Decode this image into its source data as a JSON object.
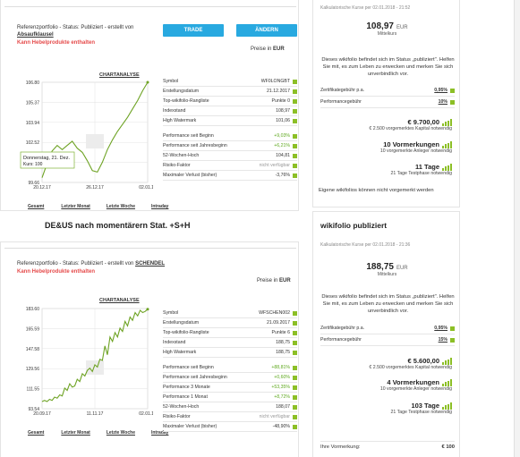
{
  "top": {
    "ref_prefix": "Referenzportfolio - Status: Publiziert - erstellt von",
    "ref_author": "Absaufklausel",
    "warning": "Kann Hebelprodukte enthalten",
    "buttons": {
      "trade": "TRADE",
      "change": "ÄNDERN"
    },
    "preise_label": "Preise in",
    "preise_currency": "EUR",
    "chart_title": "CHARTANALYSE",
    "chart_data": {
      "type": "line",
      "x_ticks": [
        "20.12.17",
        "26.12.17",
        "02.01.18"
      ],
      "y_ticks": [
        "106.80",
        "105.37",
        "103.94",
        "102.52",
        "101.09",
        "99.66"
      ],
      "ylim": [
        99.66,
        106.8
      ],
      "values": [
        100.0,
        101.0,
        101.9,
        102.3,
        102.0,
        102.3,
        102.6,
        102.1,
        101.8,
        101.2,
        100.5,
        100.4,
        101.1,
        102.0,
        102.7,
        103.3,
        103.8,
        104.3,
        104.9,
        105.5,
        106.2,
        106.8
      ],
      "tooltip_date": "Donnerstag, 21. Dez.",
      "tooltip_value": "Kurs: 100"
    },
    "periods": [
      "Gesamt",
      "Letzter Monat",
      "Letzte Woche",
      "Intraday"
    ],
    "stats_a": [
      {
        "label": "Symbol",
        "value": "WF0LONGBT",
        "style": "plain"
      },
      {
        "label": "Erstellungsdatum",
        "value": "21.12.2017",
        "style": "plain"
      },
      {
        "label": "Top-wikifolio-Rangliste",
        "value": "Punkte 0",
        "style": "plain"
      },
      {
        "label": "Indexstand",
        "value": "108,97",
        "style": "plain"
      },
      {
        "label": "High Watermark",
        "value": "101,06",
        "style": "plain"
      }
    ],
    "stats_b": [
      {
        "label": "Performance seit Beginn",
        "value": "+9,03%",
        "style": "pos"
      },
      {
        "label": "Performance seit Jahresbeginn",
        "value": "+6,21%",
        "style": "pos"
      },
      {
        "label": "52-Wochen-Hoch",
        "value": "104,81",
        "style": "plain"
      },
      {
        "label": "Risiko-Faktor",
        "value": "nicht verfügbar",
        "style": "muted"
      },
      {
        "label": "Maximaler Verlust (bisher)",
        "value": "-3,76%",
        "style": "plain"
      }
    ]
  },
  "top_right": {
    "kurs_label": "Kalkulatorische Kurse per 02.01.2018 - 21:52",
    "price": "108,97",
    "currency": "EUR",
    "mittelkurs": "Mittelkurs",
    "desc": "Dieses wikifolio befindet sich im Status „publiziert\". Helfen Sie mit, es zum Leben zu erwecken und merken Sie sich unverbindlich vor.",
    "fees": [
      {
        "label": "Zertifikategebühr p.a.",
        "value": "0,95%"
      },
      {
        "label": "Performancegebühr",
        "value": "10%"
      }
    ],
    "capital_main": "€ 9.700,00",
    "capital_note": "€ 2.500 vorgemerktes Kapital notwendig",
    "vorm_main": "10 Vormerkungen",
    "vorm_note": "10 vorgemerkte Anleger notwendig",
    "days_main": "11 Tage",
    "days_note": "21 Tage Testphase notwendig",
    "eigene": "Eigene wikifolios können nicht vorgemerkt werden"
  },
  "bottom": {
    "section_title": "DE&US nach momentärern Stat. +S+H",
    "ref_prefix": "Referenzportfolio - Status: Publiziert - erstellt von",
    "ref_author": "SCHENDEL",
    "warning": "Kann Hebelprodukte enthalten",
    "preise_label": "Preise in",
    "preise_currency": "EUR",
    "chart_title": "CHARTANALYSE",
    "chart_data": {
      "type": "line",
      "x_ticks": [
        "20.09.17",
        "11.11.17",
        "02.01.18"
      ],
      "y_ticks": [
        "183.60",
        "165.59",
        "147.58",
        "129.56",
        "111.55",
        "93.54"
      ],
      "ylim": [
        93.54,
        183.6
      ],
      "values": [
        100,
        101,
        100,
        102,
        101,
        104,
        103,
        106,
        105,
        112,
        110,
        116,
        113,
        114,
        120,
        118,
        125,
        123,
        128,
        130,
        127,
        133,
        131,
        138,
        137,
        150,
        142,
        158,
        154,
        162,
        158,
        166,
        163,
        172,
        168,
        176,
        173,
        180,
        177,
        182,
        180,
        181,
        183
      ]
    },
    "periods": [
      "Gesamt",
      "Letzter Monat",
      "Letzte Woche",
      "Intraday"
    ],
    "stats_a": [
      {
        "label": "Symbol",
        "value": "WFSCHEN002",
        "style": "plain"
      },
      {
        "label": "Erstellungsdatum",
        "value": "21.09.2017",
        "style": "plain"
      },
      {
        "label": "Top-wikifolio-Rangliste",
        "value": "Punkte 6",
        "style": "plain"
      },
      {
        "label": "Indexstand",
        "value": "188,75",
        "style": "plain"
      },
      {
        "label": "High Watermark",
        "value": "188,75",
        "style": "plain"
      }
    ],
    "stats_b": [
      {
        "label": "Performance seit Beginn",
        "value": "+88,81%",
        "style": "pos"
      },
      {
        "label": "Performance seit Jahresbeginn",
        "value": "+0,60%",
        "style": "pos"
      },
      {
        "label": "Performance 3 Monate",
        "value": "+53,35%",
        "style": "pos"
      },
      {
        "label": "Performance 1 Monat",
        "value": "+8,72%",
        "style": "pos"
      },
      {
        "label": "52-Wochen-Hoch",
        "value": "188,07",
        "style": "plain"
      },
      {
        "label": "Risiko-Faktor",
        "value": "nicht verfügbar",
        "style": "muted"
      },
      {
        "label": "Maximaler Verlust (bisher)",
        "value": "-48,90%",
        "style": "plain"
      }
    ]
  },
  "bottom_right": {
    "title": "wikifolio publiziert",
    "kurs_label": "Kalkulatorische Kurse per 02.01.2018 - 21:36",
    "price": "188,75",
    "currency": "EUR",
    "mittelkurs": "Mittelkurs",
    "desc": "Dieses wikifolio befindet sich im Status „publiziert\". Helfen Sie mit, es zum Leben zu erwecken und merken Sie sich unverbindlich vor.",
    "fees": [
      {
        "label": "Zertifikategebühr p.a.",
        "value": "0,95%"
      },
      {
        "label": "Performancegebühr",
        "value": "15%"
      }
    ],
    "capital_main": "€ 5.600,00",
    "capital_note": "€ 2.500 vorgemerktes Kapital notwendig",
    "vorm_main": "4 Vormerkungen",
    "vorm_note": "10 vorgemerkte Anleger notwendig",
    "days_main": "103 Tage",
    "days_note": "21 Tage Testphase notwendig",
    "ihre_label": "Ihre Vormerkung:",
    "ihre_value": "€ 100"
  }
}
